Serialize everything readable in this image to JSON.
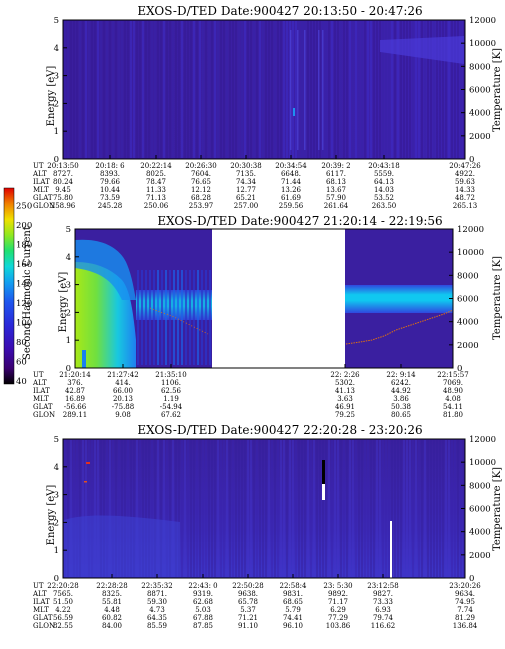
{
  "colorbar": {
    "label": "Second Harmonic Current",
    "ticks": [
      "40",
      "60",
      "80",
      "100",
      "120",
      "140",
      "160",
      "180",
      "200",
      "250"
    ],
    "colors": [
      "#000000",
      "#3a0070",
      "#3b0cb0",
      "#2a28d8",
      "#1e56ee",
      "#12a0f0",
      "#10d8d8",
      "#20e070",
      "#90e820",
      "#f0e000",
      "#f08000",
      "#e00000"
    ]
  },
  "row_labels": [
    "UT",
    "ALT",
    "ILAT",
    "MLT",
    "GLAT",
    "GLON"
  ],
  "chart_data": [
    {
      "type": "heatmap",
      "title": "EXOS-D/TED   Date:900427   20:13:50 - 20:47:26",
      "ylabel": "Energy [eV]",
      "ylabel2": "Temperature [K]",
      "ylim": [
        0,
        5
      ],
      "y_ticks": [
        "0",
        "1",
        "2",
        "3",
        "4",
        "5"
      ],
      "ylim2": [
        0,
        12000
      ],
      "y2_ticks": [
        "0",
        "2000",
        "4000",
        "6000",
        "8000",
        "10000",
        "12000"
      ],
      "x_columns": [
        [
          "20:13:50",
          "8727.",
          "80.24",
          "9.45",
          "75.80",
          "258.96"
        ],
        [
          "20:18: 6",
          "8393.",
          "79.66",
          "10.44",
          "73.59",
          "245.28"
        ],
        [
          "20:22:14",
          "8025.",
          "78.47",
          "11.33",
          "71.13",
          "250.06"
        ],
        [
          "20:26:30",
          "7604.",
          "76.65",
          "12.12",
          "68.28",
          "253.97"
        ],
        [
          "20:30:38",
          "7135.",
          "74.34",
          "12.77",
          "65.21",
          "257.00"
        ],
        [
          "20:34:54",
          "6648.",
          "71.44",
          "13.26",
          "61.69",
          "259.56"
        ],
        [
          "20:39: 2",
          "6117.",
          "68.13",
          "13.67",
          "57.90",
          "261.64"
        ],
        [
          "20:43:18",
          "5559.",
          "64.13",
          "14.03",
          "53.52",
          "263.50"
        ],
        [
          "20:47:26",
          "4922.",
          "59.63",
          "14.33",
          "48.72",
          "265.13"
        ]
      ]
    },
    {
      "type": "heatmap",
      "title": "EXOS-D/TED   Date:900427   21:20:14 - 22:19:56",
      "ylabel": "Energy [eV]",
      "ylabel2": "Temperature [K]",
      "ylim": [
        0,
        5
      ],
      "y_ticks": [
        "0",
        "1",
        "2",
        "3",
        "4",
        "5"
      ],
      "ylim2": [
        0,
        12000
      ],
      "y2_ticks": [
        "0",
        "2000",
        "4000",
        "6000",
        "8000",
        "10000",
        "12000"
      ],
      "data_gap": [
        "21:39",
        "22:02"
      ],
      "x_columns": [
        [
          "21:20:14",
          "376.",
          "42.87",
          "16.89",
          "-56.66",
          "289.11"
        ],
        [
          "21:27:42",
          "414.",
          "66.00",
          "20.13",
          "-75.88",
          "9.08"
        ],
        [
          "21:35:10",
          "1106.",
          "62.56",
          "1.19",
          "-54.94",
          "67.62"
        ],
        [
          "22: 2:26",
          "5302.",
          "41.13",
          "3.63",
          "46.91",
          "79.25"
        ],
        [
          "22: 9:14",
          "6242.",
          "44.92",
          "3.86",
          "50.38",
          "80.65"
        ],
        [
          "22:15:57",
          "7069.",
          "48.90",
          "4.08",
          "54.11",
          "81.80"
        ]
      ]
    },
    {
      "type": "heatmap",
      "title": "EXOS-D/TED   Date:900427   22:20:28 - 23:20:26",
      "ylabel": "Energy [eV]",
      "ylabel2": "Temperature [K]",
      "ylim": [
        0,
        5
      ],
      "y_ticks": [
        "0",
        "1",
        "2",
        "3",
        "4",
        "5"
      ],
      "ylim2": [
        0,
        12000
      ],
      "y2_ticks": [
        "0",
        "2000",
        "4000",
        "6000",
        "8000",
        "10000",
        "12000"
      ],
      "x_columns": [
        [
          "22:20:28",
          "7565.",
          "51.50",
          "4.22",
          "56.59",
          "82.55"
        ],
        [
          "22:28:28",
          "8325.",
          "55.81",
          "4.48",
          "60.82",
          "84.00"
        ],
        [
          "22:35:32",
          "8871.",
          "59.30",
          "4.73",
          "64.35",
          "85.59"
        ],
        [
          "22:43: 0",
          "9319.",
          "62.68",
          "5.03",
          "67.88",
          "87.85"
        ],
        [
          "22:50:28",
          "9638.",
          "65.78",
          "5.37",
          "71.21",
          "91.10"
        ],
        [
          "22:58:4",
          "9831.",
          "68.65",
          "5.79",
          "74.41",
          "96.10"
        ],
        [
          "23: 5:30",
          "9892.",
          "71.17",
          "6.29",
          "77.29",
          "103.86"
        ],
        [
          "23:12:58",
          "9827.",
          "73.33",
          "6.93",
          "79.74",
          "116.62"
        ],
        [
          "23:20:26",
          "9634.",
          "74.95",
          "7.74",
          "81.29",
          "136.84"
        ]
      ]
    }
  ]
}
